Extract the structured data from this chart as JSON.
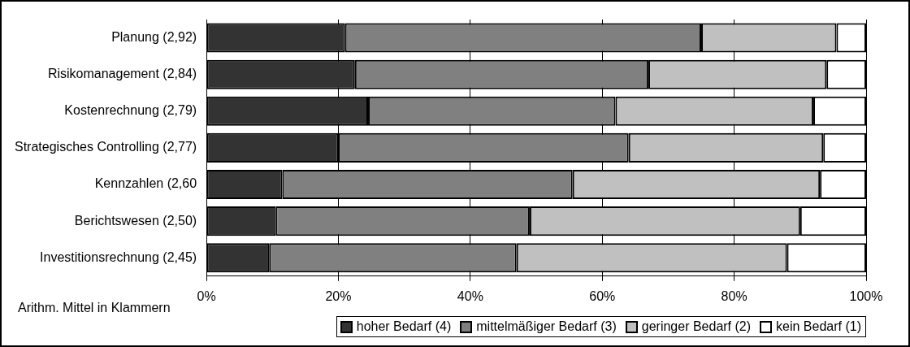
{
  "chart_data": {
    "type": "bar",
    "orientation": "horizontal",
    "stacked": true,
    "categories": [
      "Planung (2,92)",
      "Risikomanagement (2,84)",
      "Kostenrechnung (2,79)",
      "Strategisches Controlling (2,77)",
      "Kennzahlen (2,60",
      "Berichtswesen (2,50)",
      "Investitionsrechnung (2,45)"
    ],
    "series": [
      {
        "name": "hoher Bedarf (4)",
        "color": "#333333",
        "values": [
          21,
          22.5,
          24.5,
          20,
          11.5,
          10.5,
          9.5
        ]
      },
      {
        "name": "mittelmäßiger Bedarf (3)",
        "color": "#808080",
        "values": [
          54,
          44.5,
          37.5,
          44,
          44,
          38.5,
          37.5
        ]
      },
      {
        "name": "geringer Bedarf (2)",
        "color": "#c0c0c0",
        "values": [
          20.5,
          27,
          30,
          29.5,
          37.5,
          41,
          41
        ]
      },
      {
        "name": "kein Bedarf (1)",
        "color": "#ffffff",
        "values": [
          4.5,
          6,
          8,
          6.5,
          7,
          10,
          12
        ]
      }
    ],
    "xlim": [
      0,
      100
    ],
    "xticks": [
      {
        "value": 0,
        "label": "0%"
      },
      {
        "value": 20,
        "label": "20%"
      },
      {
        "value": 40,
        "label": "40%"
      },
      {
        "value": 60,
        "label": "60%"
      },
      {
        "value": 80,
        "label": "80%"
      },
      {
        "value": 100,
        "label": "100%"
      }
    ],
    "grid": "x",
    "legend": "bottom",
    "annotations": [
      "Arithm. Mittel in Klammern"
    ]
  }
}
